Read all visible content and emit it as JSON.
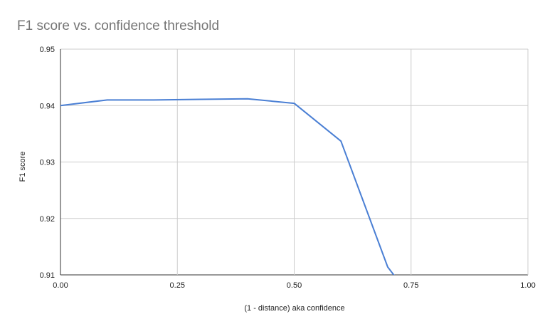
{
  "chart_data": {
    "type": "line",
    "title": "F1 score vs. confidence threshold",
    "xlabel": "(1 - distance) aka confidence",
    "ylabel": "F1 score",
    "xlim": [
      0,
      1
    ],
    "ylim": [
      0.91,
      0.95
    ],
    "x_ticks": [
      "0.00",
      "0.25",
      "0.50",
      "0.75",
      "1.00"
    ],
    "y_ticks": [
      "0.91",
      "0.92",
      "0.93",
      "0.94",
      "0.95"
    ],
    "grid": true,
    "series": [
      {
        "color": "#4a7fd4",
        "points": [
          {
            "x": 0.0,
            "y": 0.94
          },
          {
            "x": 0.1,
            "y": 0.941
          },
          {
            "x": 0.2,
            "y": 0.941
          },
          {
            "x": 0.3,
            "y": 0.9411
          },
          {
            "x": 0.4,
            "y": 0.9412
          },
          {
            "x": 0.5,
            "y": 0.9404
          },
          {
            "x": 0.6,
            "y": 0.9337
          },
          {
            "x": 0.7,
            "y": 0.9114
          },
          {
            "x": 0.75,
            "y": 0.906
          }
        ]
      }
    ]
  }
}
